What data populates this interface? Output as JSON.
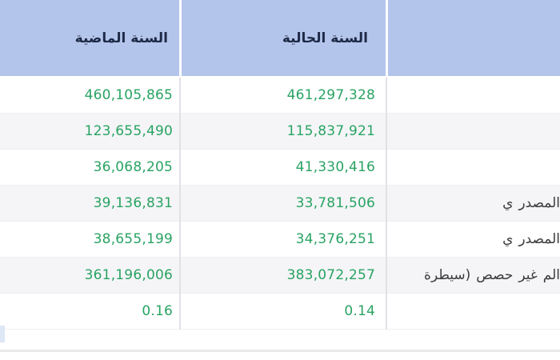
{
  "table": {
    "columns": [
      {
        "header": "السنة الماضية"
      },
      {
        "header": "السنة الحالية"
      },
      {
        "header": ""
      }
    ],
    "rows": [
      {
        "prev": "460,105,865",
        "curr": "461,297,328",
        "label_parts": []
      },
      {
        "prev": "123,655,490",
        "curr": "115,837,921",
        "label_parts": []
      },
      {
        "prev": "36,068,205",
        "curr": "41,330,416",
        "label_parts": []
      },
      {
        "prev": "39,136,831",
        "curr": "33,781,506",
        "label_parts": [
          "ي",
          "المصدر"
        ]
      },
      {
        "prev": "38,655,199",
        "curr": "34,376,251",
        "label_parts": [
          "ي",
          "المصدر"
        ]
      },
      {
        "prev": "361,196,006",
        "curr": "383,072,257",
        "label_parts": [
          "سيطرة)",
          "حصص",
          "غير",
          "الم"
        ]
      },
      {
        "prev": "0.16",
        "curr": "0.14",
        "label_parts": []
      }
    ],
    "colors": {
      "header_background": "#b4c5eb",
      "header_text": "#1d2946",
      "number_green": "#29a363",
      "label_text": "#3b3b3d",
      "stripe": "#f5f5f7",
      "separator": "#e1e1e6",
      "header_bottom_border": "#4a5266"
    }
  }
}
